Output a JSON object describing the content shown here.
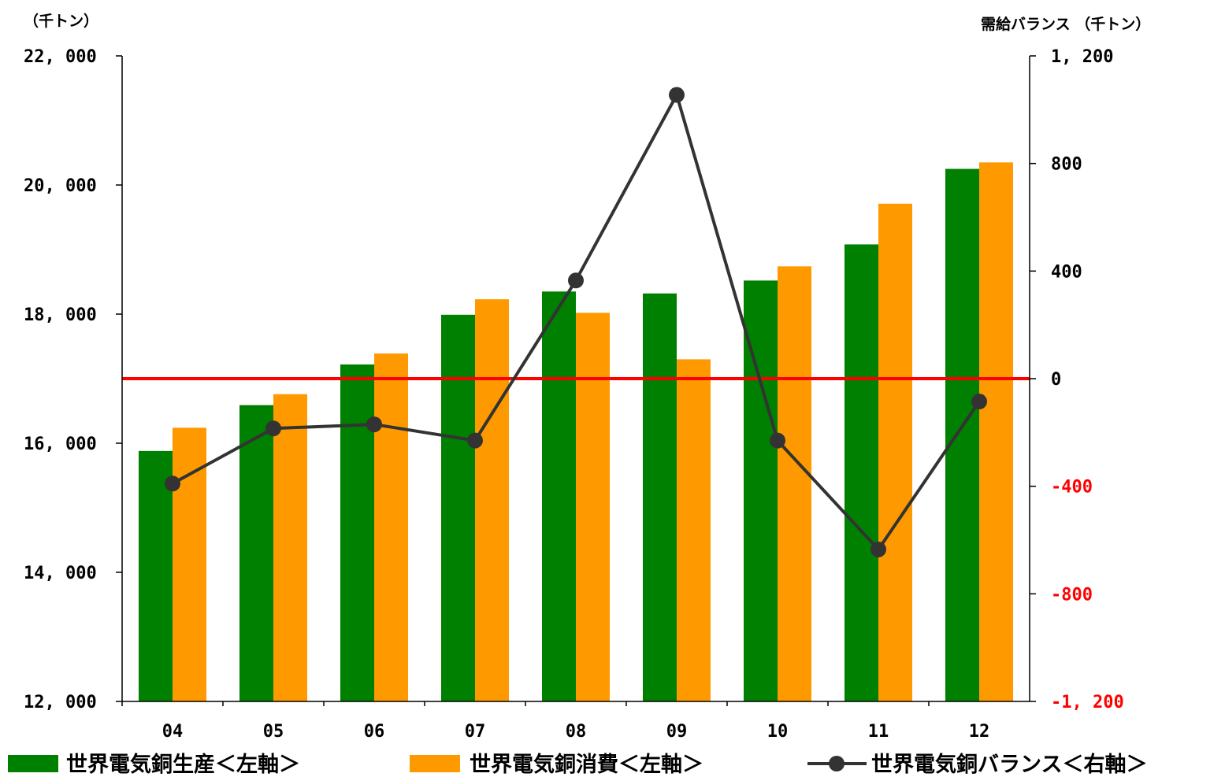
{
  "chart_data": {
    "type": "bar",
    "categories": [
      "04",
      "05",
      "06",
      "07",
      "08",
      "09",
      "10",
      "11",
      "12"
    ],
    "series": [
      {
        "name": "世界電気銅生産＜左軸＞",
        "axis": "left",
        "type": "bar",
        "color": "#008000",
        "values": [
          15880,
          16590,
          17220,
          17990,
          18350,
          18320,
          18520,
          19080,
          20250
        ]
      },
      {
        "name": "世界電気銅消費＜左軸＞",
        "axis": "left",
        "type": "bar",
        "color": "#ff9900",
        "values": [
          16240,
          16760,
          17390,
          18230,
          18020,
          17300,
          18740,
          19710,
          20350
        ]
      },
      {
        "name": "世界電気銅バランス＜右軸＞",
        "axis": "right",
        "type": "line",
        "color": "#333333",
        "values": [
          -390,
          -185,
          -170,
          -230,
          365,
          1055,
          -230,
          -635,
          -85
        ]
      }
    ],
    "left_axis": {
      "unit_label": "（千トン）",
      "ylim": [
        12000,
        22000
      ],
      "ticks": [
        "22, 000",
        "20, 000",
        "18, 000",
        "16, 000",
        "14, 000",
        "12, 000"
      ],
      "tick_values": [
        22000,
        20000,
        18000,
        16000,
        14000,
        12000
      ]
    },
    "right_axis": {
      "unit_label": "需給バランス （千トン）",
      "ylim": [
        -1200,
        1200
      ],
      "ticks": [
        "1, 200",
        "800",
        "400",
        "0",
        "-400",
        "-800",
        "-1, 200"
      ],
      "tick_values": [
        1200,
        800,
        400,
        0,
        -400,
        -800,
        -1200
      ],
      "negative_color": "#ff0000"
    },
    "zero_line": {
      "value": 0,
      "axis": "right",
      "color": "#ff0000"
    },
    "legend_position": "bottom",
    "grid": false
  }
}
